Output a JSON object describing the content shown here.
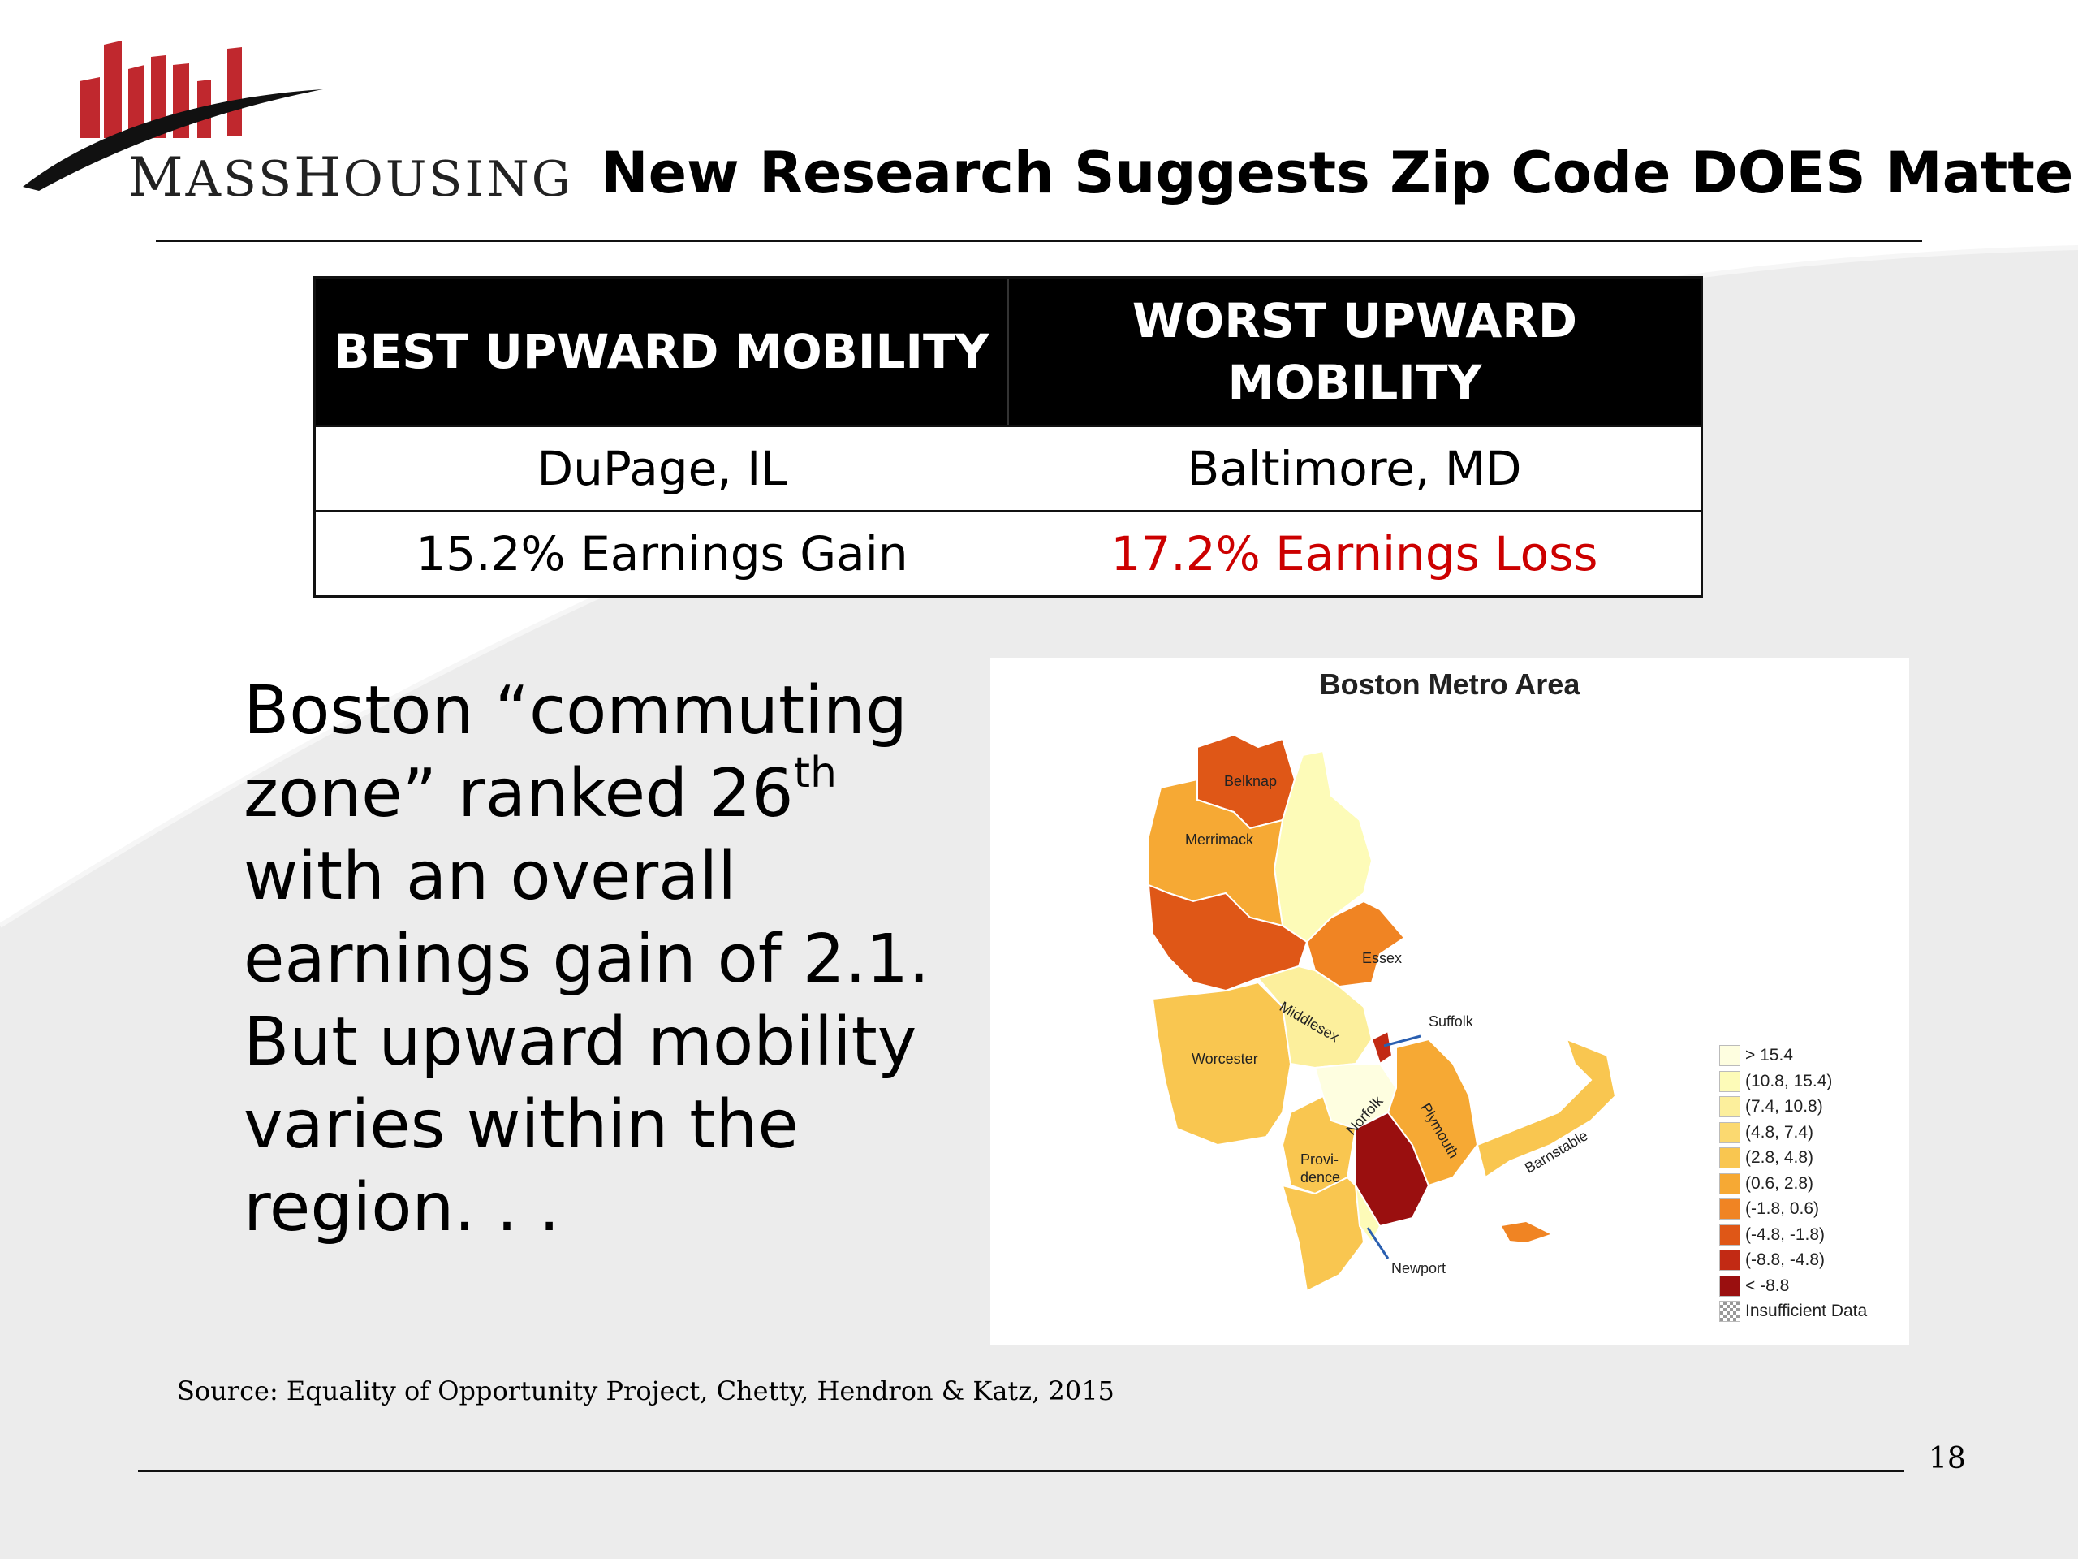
{
  "brand": {
    "logo_text_lead_1": "M",
    "logo_text_rest_1": "ASS",
    "logo_text_lead_2": "H",
    "logo_text_rest_2": "OUSING"
  },
  "slide": {
    "title": "New Research Suggests Zip Code DOES Matter",
    "page_number": "18",
    "source": "Source: Equality of Opportunity Project, Chetty, Hendron & Katz, 2015"
  },
  "table": {
    "headers": [
      "BEST UPWARD MOBILITY",
      "WORST UPWARD MOBILITY"
    ],
    "rows": [
      [
        "DuPage, IL",
        "Baltimore, MD"
      ],
      [
        "15.2% Earnings Gain",
        "17.2% Earnings Loss"
      ]
    ]
  },
  "body": {
    "line1": "Boston “commuting zone” ranked 26",
    "ordinal_suffix": "th",
    "line2": "with an overall earnings gain of 2.1. But upward mobility varies within the region. . ."
  },
  "map": {
    "title": "Boston Metro Area",
    "labels": {
      "belknap": "Belknap",
      "merrimack": "Merrimack",
      "essex": "Essex",
      "middlesex": "Middlesex",
      "suffolk": "Suffolk",
      "worcester": "Worcester",
      "norfolk": "Norfolk",
      "plymouth": "Plymouth",
      "barnstable": "Barnstable",
      "providence_1": "Provi-",
      "providence_2": "dence",
      "newport": "Newport"
    },
    "legend": [
      {
        "label": "> 15.4",
        "color": "#fefee0"
      },
      {
        "label": "(10.8, 15.4)",
        "color": "#fdfbb8"
      },
      {
        "label": "(7.4, 10.8)",
        "color": "#fcef9c"
      },
      {
        "label": "(4.8, 7.4)",
        "color": "#fbd970"
      },
      {
        "label": "(2.8, 4.8)",
        "color": "#f9c650"
      },
      {
        "label": "(0.6, 2.8)",
        "color": "#f6a934"
      },
      {
        "label": "(-1.8, 0.6)",
        "color": "#f08423"
      },
      {
        "label": "(-4.8, -1.8)",
        "color": "#df5717"
      },
      {
        "label": "(-8.8, -4.8)",
        "color": "#c22a14"
      },
      {
        "label": "< -8.8",
        "color": "#9a0f0f"
      },
      {
        "label": "Insufficient Data",
        "color": "checker"
      }
    ]
  }
}
